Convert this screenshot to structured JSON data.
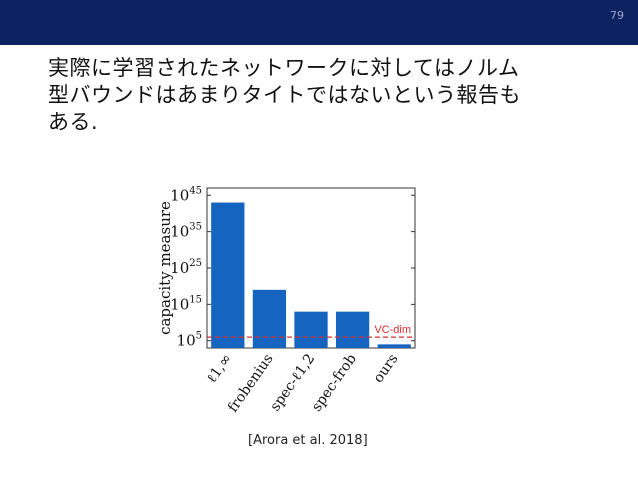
{
  "slide": {
    "page_number": "79",
    "headline_lines": [
      "実際に学習されたネットワークに対してはノルム",
      "型バウンドはあまりタイトではないという報告も",
      "ある."
    ],
    "citation": "[Arora et al. 2018]"
  },
  "colors": {
    "header_bar": "#0d2260",
    "bar_fill": "#1565c0",
    "vc_line": "#d32f2f"
  },
  "chart_data": {
    "type": "bar",
    "title": "",
    "xlabel": "",
    "ylabel": "capacity measure",
    "y_scale": "log",
    "y_tick_labels": [
      "10^5",
      "10^15",
      "10^25",
      "10^35",
      "10^45"
    ],
    "y_ticks": [
      100000.0,
      1000000000000000.0,
      1e+25,
      1e+35,
      1e+45
    ],
    "ylim": [
      1000.0,
      1e+47
    ],
    "categories": [
      "ℓ1,∞",
      "frobenius",
      "spec-ℓ1,2",
      "spec-frob",
      "ours"
    ],
    "values": [
      1e+43,
      1e+19,
      10000000000000.0,
      10000000000000.0,
      10000.0
    ],
    "reference_line": {
      "label": "VC-dim",
      "value": 1000000.0
    },
    "grid": false
  }
}
